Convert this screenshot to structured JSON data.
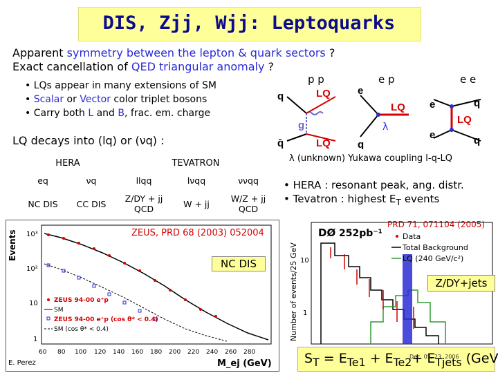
{
  "title": "DIS, Zjj, Wjj: Leptoquarks",
  "intro": {
    "line1_a": "Apparent ",
    "line1_b": "symmetry between the lepton & quark sectors",
    "line1_c": " ?",
    "line2_a": "Exact cancellation of ",
    "line2_b": "QED triangular anomaly",
    "line2_c": " ?"
  },
  "bullets": {
    "b1": "• LQs appear in many extensions of SM",
    "b2_a": "• ",
    "b2_b": "Scalar",
    "b2_c": " or ",
    "b2_d": "Vector",
    "b2_e": " color triplet bosons",
    "b3_a": "• Carry both ",
    "b3_b": "L",
    "b3_c": " and ",
    "b3_d": "B",
    "b3_e": ",  frac. em. charge"
  },
  "decay": "LQ decays into (lq) or (νq) :",
  "table": {
    "hera": "HERA",
    "tevatron": "TEVATRON",
    "states": [
      "eq",
      "νq",
      "llqq",
      "lνqq",
      "ννqq"
    ],
    "processes": [
      "NC DIS",
      "CC DIS",
      "Z/DY + jj QCD",
      "W + jj",
      "W/Z + jj QCD"
    ]
  },
  "feynman": {
    "pp": "p p",
    "ep": "e p",
    "ee": "e e",
    "q": "q",
    "LQ": "LQ",
    "e": "e",
    "g": "g",
    "qbar": "q̄",
    "lambda": "λ",
    "caption": "λ (unknown) Yukawa coupling l-q-LQ"
  },
  "hera_notes": {
    "n1": "• HERA : resonant peak, ang. distr.",
    "n2_a": "• Tevatron : highest E",
    "n2_sub": "T",
    "n2_b": " events"
  },
  "zeus_plot": {
    "reference": "ZEUS, PRD 68 (2003) 052004",
    "tag": "NC DIS",
    "ylabel": "Events",
    "xlabel": "M_ej (GeV)",
    "yticks": [
      "10³",
      "10²",
      "10",
      "1"
    ],
    "xticks": [
      "60",
      "80",
      "100",
      "120",
      "140",
      "160",
      "180",
      "200",
      "220",
      "240",
      "260",
      "280"
    ],
    "legend": [
      "ZEUS 94-00 e⁺p",
      "SM",
      "ZEUS 94-00 e⁺p (cos θ* < 0.4)",
      "SM (cos θ* < 0.4)"
    ],
    "author": "E. Perez"
  },
  "d0_plot": {
    "reference": "PRD 71, 071104 (2005)",
    "experiment": "DØ",
    "lumi": "252pb⁻¹",
    "ylabel": "Number of events/25 GeV",
    "legend": [
      "Data",
      "Total Background",
      "LQ (240 GeV/c²)"
    ],
    "yticks": [
      "10",
      "1"
    ],
    "tag": "Z/DY+jets",
    "footer": "Dec. 05, 23, 2006"
  },
  "st": {
    "a": "S",
    "a_sub": "T",
    "b": " = E",
    "b_sub": "Te1",
    "c": " + E",
    "c_sub": "Te2",
    "d": "+ E",
    "d_sub": "Tjets",
    "e": " (GeV)"
  },
  "colors": {
    "title": "#0b0b8c",
    "highlight": "#ffff99",
    "accent_blue": "#2b2bd6",
    "data_red": "#d40000"
  }
}
